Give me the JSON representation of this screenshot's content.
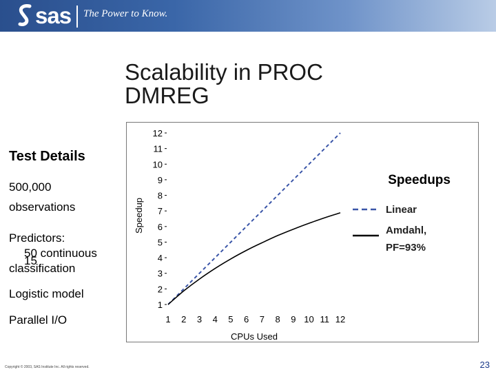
{
  "header": {
    "logo_text": "sas",
    "tagline": "The Power to Know.",
    "colors": {
      "banner_left": "#2a4f8d",
      "banner_right": "#b9cce6"
    }
  },
  "slide": {
    "title": "Scalability in PROC DMREG",
    "test_details_heading": "Test Details",
    "observations_line1": "500,000",
    "observations_line2": "observations",
    "predictors_label": "Predictors:",
    "continuous_line": "50 continuous",
    "classification_count": "15",
    "classification_label": "classification",
    "model": "Logistic model",
    "io": "Parallel I/O",
    "footer": "Copyright © 2003, SAS Institute Inc. All rights reserved.",
    "page_number": "23"
  },
  "chart_data": {
    "type": "line",
    "xlabel": "CPUs Used",
    "ylabel": "Speedup",
    "xlim": [
      1,
      12
    ],
    "ylim": [
      1,
      12
    ],
    "x_ticks": [
      1,
      2,
      3,
      4,
      5,
      6,
      7,
      8,
      9,
      10,
      11,
      12
    ],
    "y_ticks": [
      1,
      2,
      3,
      4,
      5,
      6,
      7,
      8,
      9,
      10,
      11,
      12
    ],
    "legend_title": "Speedups",
    "legend_position": "right",
    "series": [
      {
        "name": "Linear",
        "style": "dashed",
        "color": "#3a55a8",
        "x": [
          1,
          2,
          3,
          4,
          5,
          6,
          7,
          8,
          9,
          10,
          11,
          12
        ],
        "y": [
          1,
          2,
          3,
          4,
          5,
          6,
          7,
          8,
          9,
          10,
          11,
          12
        ]
      },
      {
        "name": "Amdahl, PF=93%",
        "style": "solid",
        "color": "#000000",
        "x": [
          1,
          2,
          3,
          4,
          5,
          6,
          7,
          8,
          9,
          10,
          11,
          12
        ],
        "y": [
          1.0,
          1.87,
          2.63,
          3.31,
          3.92,
          4.47,
          4.96,
          5.42,
          5.83,
          6.21,
          6.56,
          6.88
        ]
      }
    ]
  }
}
